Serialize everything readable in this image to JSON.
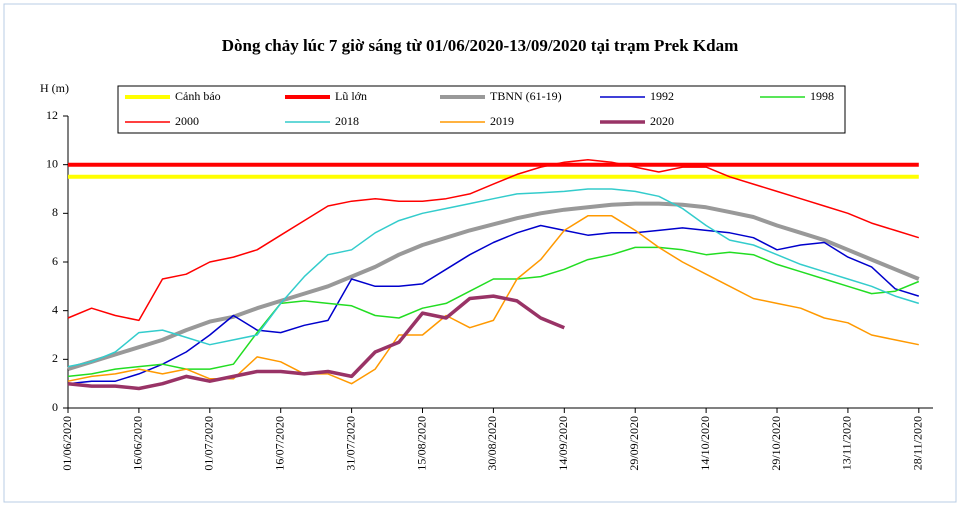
{
  "chart_data": {
    "type": "line",
    "title": "Dòng chảy lúc 7 giờ sáng từ 01/06/2020-13/09/2020 tại trạm Prek Kdam",
    "y_label": "H (m)",
    "x": [
      "2020-06-01",
      "2020-06-06",
      "2020-06-11",
      "2020-06-16",
      "2020-06-21",
      "2020-06-26",
      "2020-07-01",
      "2020-07-06",
      "2020-07-11",
      "2020-07-16",
      "2020-07-21",
      "2020-07-26",
      "2020-07-31",
      "2020-08-05",
      "2020-08-10",
      "2020-08-15",
      "2020-08-20",
      "2020-08-25",
      "2020-08-30",
      "2020-09-04",
      "2020-09-09",
      "2020-09-14",
      "2020-09-19",
      "2020-09-24",
      "2020-09-29",
      "2020-10-04",
      "2020-10-09",
      "2020-10-14",
      "2020-10-19",
      "2020-10-24",
      "2020-10-29",
      "2020-11-03",
      "2020-11-08",
      "2020-11-13",
      "2020-11-18",
      "2020-11-23",
      "2020-11-28"
    ],
    "xlim": [
      "2020-06-01",
      "2020-12-01"
    ],
    "xticks": [
      {
        "value": "2020-06-01",
        "label": "01/06/2020"
      },
      {
        "value": "2020-06-16",
        "label": "16/06/2020"
      },
      {
        "value": "2020-07-01",
        "label": "01/07/2020"
      },
      {
        "value": "2020-07-16",
        "label": "16/07/2020"
      },
      {
        "value": "2020-07-31",
        "label": "31/07/2020"
      },
      {
        "value": "2020-08-15",
        "label": "15/08/2020"
      },
      {
        "value": "2020-08-30",
        "label": "30/08/2020"
      },
      {
        "value": "2020-09-14",
        "label": "14/09/2020"
      },
      {
        "value": "2020-09-29",
        "label": "29/09/2020"
      },
      {
        "value": "2020-10-14",
        "label": "14/10/2020"
      },
      {
        "value": "2020-10-29",
        "label": "29/10/2020"
      },
      {
        "value": "2020-11-13",
        "label": "13/11/2020"
      },
      {
        "value": "2020-11-28",
        "label": "28/11/2020"
      }
    ],
    "ylim": [
      0,
      12
    ],
    "yticks": [
      0,
      2,
      4,
      6,
      8,
      10,
      12
    ],
    "legend": "top",
    "series": [
      {
        "name": "Cảnh báo",
        "color": "#ffff00",
        "line_width": 4,
        "values": [
          9.5,
          9.5,
          9.5,
          9.5,
          9.5,
          9.5,
          9.5,
          9.5,
          9.5,
          9.5,
          9.5,
          9.5,
          9.5,
          9.5,
          9.5,
          9.5,
          9.5,
          9.5,
          9.5,
          9.5,
          9.5,
          9.5,
          9.5,
          9.5,
          9.5,
          9.5,
          9.5,
          9.5,
          9.5,
          9.5,
          9.5,
          9.5,
          9.5,
          9.5,
          9.5,
          9.5,
          9.5
        ]
      },
      {
        "name": "Lũ lớn",
        "color": "#ff0000",
        "line_width": 4,
        "values": [
          10,
          10,
          10,
          10,
          10,
          10,
          10,
          10,
          10,
          10,
          10,
          10,
          10,
          10,
          10,
          10,
          10,
          10,
          10,
          10,
          10,
          10,
          10,
          10,
          10,
          10,
          10,
          10,
          10,
          10,
          10,
          10,
          10,
          10,
          10,
          10,
          10
        ]
      },
      {
        "name": "TBNN (61-19)",
        "color": "#999999",
        "line_width": 4,
        "values": [
          1.6,
          1.9,
          2.2,
          2.5,
          2.8,
          3.2,
          3.55,
          3.75,
          4.1,
          4.4,
          4.7,
          5.0,
          5.4,
          5.8,
          6.3,
          6.7,
          7.0,
          7.3,
          7.55,
          7.8,
          8.0,
          8.15,
          8.25,
          8.35,
          8.4,
          8.4,
          8.35,
          8.25,
          8.05,
          7.85,
          7.5,
          7.2,
          6.9,
          6.5,
          6.1,
          5.7,
          5.3
        ]
      },
      {
        "name": "1992",
        "color": "#0000cc",
        "line_width": 1.5,
        "values": [
          1.0,
          1.1,
          1.1,
          1.4,
          1.8,
          2.3,
          3.0,
          3.8,
          3.2,
          3.1,
          3.4,
          3.6,
          5.3,
          5.0,
          5.0,
          5.1,
          5.7,
          6.3,
          6.8,
          7.2,
          7.5,
          7.3,
          7.1,
          7.2,
          7.2,
          7.3,
          7.4,
          7.3,
          7.2,
          7.0,
          6.5,
          6.7,
          6.8,
          6.2,
          5.8,
          4.9,
          4.6
        ]
      },
      {
        "name": "1998",
        "color": "#22dd22",
        "line_width": 1.5,
        "values": [
          1.3,
          1.4,
          1.6,
          1.7,
          1.8,
          1.6,
          1.6,
          1.8,
          3.1,
          4.3,
          4.4,
          4.3,
          4.2,
          3.8,
          3.7,
          4.1,
          4.3,
          4.8,
          5.3,
          5.3,
          5.4,
          5.7,
          6.1,
          6.3,
          6.6,
          6.6,
          6.5,
          6.3,
          6.4,
          6.3,
          5.9,
          5.6,
          5.3,
          5.0,
          4.7,
          4.8,
          5.2
        ]
      },
      {
        "name": "2000",
        "color": "#ff0000",
        "line_width": 1.5,
        "values": [
          3.7,
          4.1,
          3.8,
          3.6,
          5.3,
          5.5,
          6.0,
          6.2,
          6.5,
          7.1,
          7.7,
          8.3,
          8.5,
          8.6,
          8.5,
          8.5,
          8.6,
          8.8,
          9.2,
          9.6,
          9.9,
          10.1,
          10.2,
          10.1,
          9.9,
          9.7,
          9.9,
          9.9,
          9.5,
          9.2,
          8.9,
          8.6,
          8.3,
          8.0,
          7.6,
          7.3,
          7.0
        ]
      },
      {
        "name": "2018",
        "color": "#33cccc",
        "line_width": 1.5,
        "values": [
          1.7,
          1.9,
          2.3,
          3.1,
          3.2,
          2.9,
          2.6,
          2.8,
          3.0,
          4.3,
          5.4,
          6.3,
          6.5,
          7.2,
          7.7,
          8.0,
          8.2,
          8.4,
          8.6,
          8.8,
          8.85,
          8.9,
          9.0,
          9.0,
          8.9,
          8.7,
          8.2,
          7.5,
          6.9,
          6.7,
          6.3,
          5.9,
          5.6,
          5.3,
          5.0,
          4.6,
          4.3
        ]
      },
      {
        "name": "2019",
        "color": "#ff9900",
        "line_width": 1.5,
        "values": [
          1.1,
          1.3,
          1.4,
          1.6,
          1.4,
          1.6,
          1.2,
          1.2,
          2.1,
          1.9,
          1.4,
          1.4,
          1.0,
          1.6,
          3.0,
          3.0,
          3.8,
          3.3,
          3.6,
          5.3,
          6.1,
          7.3,
          7.9,
          7.9,
          7.3,
          6.6,
          6.0,
          5.5,
          5.0,
          4.5,
          4.3,
          4.1,
          3.7,
          3.5,
          3.0,
          2.8,
          2.6
        ]
      },
      {
        "name": "2020",
        "color": "#993366",
        "line_width": 3.5,
        "values": [
          1.0,
          0.9,
          0.9,
          0.8,
          1.0,
          1.3,
          1.1,
          1.3,
          1.5,
          1.5,
          1.4,
          1.5,
          1.3,
          2.3,
          2.7,
          3.9,
          3.7,
          4.5,
          4.6,
          4.4,
          3.7,
          3.3,
          null,
          null,
          null,
          null,
          null,
          null,
          null,
          null,
          null,
          null,
          null,
          null,
          null,
          null,
          null
        ]
      }
    ]
  }
}
